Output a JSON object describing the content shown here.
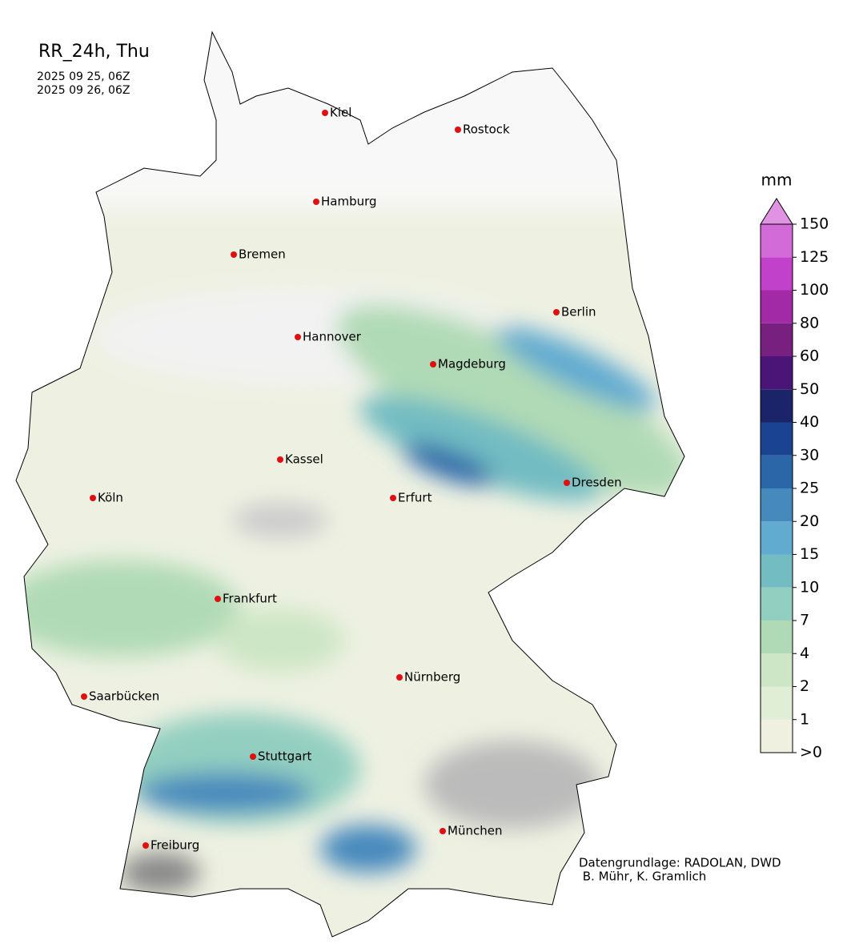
{
  "title": "RR_24h, Thu",
  "period": [
    "2025 09 25, 06Z",
    "2025 09 26, 06Z"
  ],
  "cities": [
    "Kiel",
    "Rostock",
    "Hamburg",
    "Bremen",
    "Berlin",
    "Hannover",
    "Magdeburg",
    "Kassel",
    "Dresden",
    "Köln",
    "Erfurt",
    "Frankfurt",
    "Nürnberg",
    "Saarbücken",
    "Stuttgart",
    "München",
    "Freiburg"
  ],
  "colorbar": {
    "unit": "mm",
    "ticks": [
      {
        "value": 0,
        "label": ">0"
      },
      1,
      2,
      4,
      7,
      10,
      15,
      20,
      25,
      30,
      40,
      50,
      60,
      80,
      100,
      125,
      150
    ],
    "colors": [
      "#f0f0e0",
      "#e1eed6",
      "#cde6c5",
      "#b0dab5",
      "#93cfc0",
      "#72bcc2",
      "#62abd0",
      "#4689bd",
      "#2b67a8",
      "#1a4492",
      "#1b2468",
      "#4a1577",
      "#782080",
      "#a22aa6",
      "#c141cb",
      "#d26ad8"
    ],
    "extend_color": "#e093e2"
  },
  "credit": [
    "Datengrundlage: RADOLAN, DWD",
    " B. Mühr, K. Gramlich"
  ]
}
